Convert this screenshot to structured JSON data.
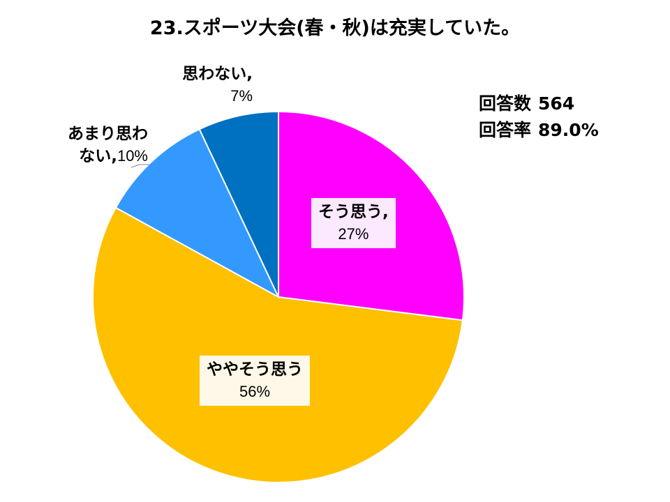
{
  "chart_data": {
    "type": "pie",
    "title": "23.スポーツ大会(春・秋)は充実していた。",
    "start_angle_deg": 0,
    "direction": "clockwise",
    "slices": [
      {
        "label": "そう思う",
        "value": 27,
        "pct_text": "27%",
        "color": "#FF00FF",
        "label_bg": "#FDE9FF"
      },
      {
        "label": "ややそう思う",
        "value": 56,
        "pct_text": "56%",
        "color": "#FFC000",
        "label_bg": "#FEF8E8"
      },
      {
        "label": "あまり思わない",
        "value": 10,
        "pct_text": "10%",
        "color": "#3399FF",
        "label_bg": "#FFFFFF"
      },
      {
        "label": "思わない",
        "value": 7,
        "pct_text": "7%",
        "color": "#0070C0",
        "label_bg": "#FFFFFF"
      }
    ]
  },
  "stats": {
    "responses_label": "回答数",
    "responses_value": "564",
    "rate_label": "回答率",
    "rate_value": "89.0%"
  }
}
